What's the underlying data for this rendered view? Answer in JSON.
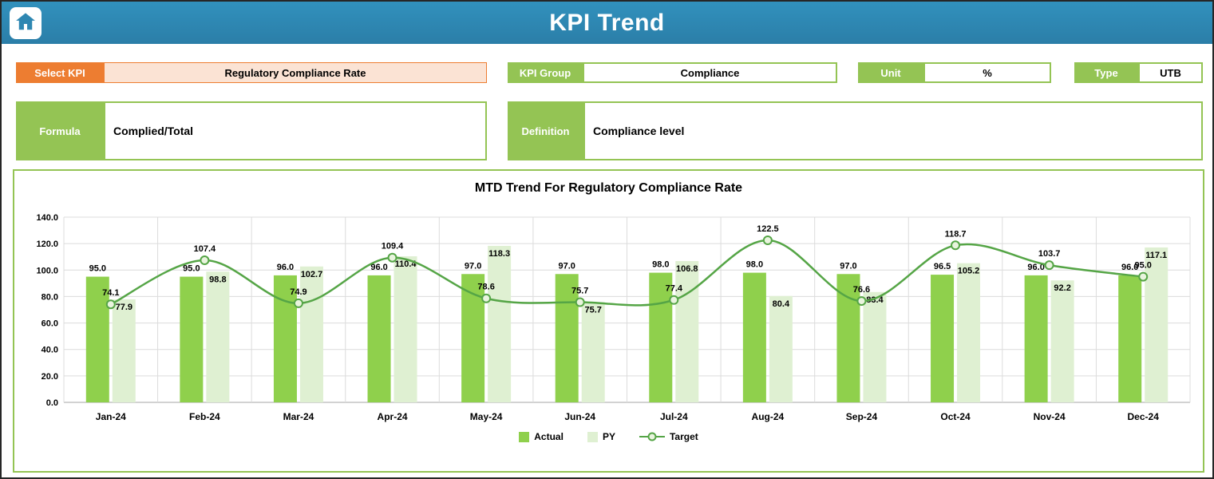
{
  "header": {
    "title": "KPI Trend"
  },
  "icons": {
    "home": "home-icon"
  },
  "filters": {
    "select_kpi": {
      "label": "Select KPI",
      "value": "Regulatory Compliance Rate"
    },
    "kpi_group": {
      "label": "KPI Group",
      "value": "Compliance"
    },
    "unit": {
      "label": "Unit",
      "value": "%"
    },
    "type": {
      "label": "Type",
      "value": "UTB"
    },
    "formula": {
      "label": "Formula",
      "value": "Complied/Total"
    },
    "definition": {
      "label": "Definition",
      "value": "Compliance level"
    }
  },
  "colors": {
    "header_bg": "#2E87B2",
    "accent_orange": "#ED7D31",
    "accent_orange_fill": "#FBE3D4",
    "accent_green": "#94C454",
    "bar_actual": "#8FD04C",
    "bar_py": "#DFF0D2",
    "line_target": "#55A546",
    "marker_fill": "#E9F4DE",
    "gridline": "#DCDCDC"
  },
  "chart_data": {
    "type": "combo-bar-line",
    "title": "MTD Trend For Regulatory Compliance Rate",
    "categories": [
      "Jan-24",
      "Feb-24",
      "Mar-24",
      "Apr-24",
      "May-24",
      "Jun-24",
      "Jul-24",
      "Aug-24",
      "Sep-24",
      "Oct-24",
      "Nov-24",
      "Dec-24"
    ],
    "series": [
      {
        "name": "Actual",
        "type": "bar",
        "values": [
          95.0,
          95.0,
          96.0,
          96.0,
          97.0,
          97.0,
          98.0,
          98.0,
          97.0,
          96.5,
          96.0,
          96.0
        ]
      },
      {
        "name": "PY",
        "type": "bar",
        "values": [
          77.9,
          98.8,
          102.7,
          110.4,
          118.3,
          75.7,
          106.8,
          80.4,
          83.4,
          105.2,
          92.2,
          117.1
        ]
      },
      {
        "name": "Target",
        "type": "line",
        "values": [
          74.1,
          107.4,
          74.9,
          109.4,
          78.6,
          75.7,
          77.4,
          122.5,
          76.6,
          118.7,
          103.7,
          95.0
        ]
      }
    ],
    "ylim": [
      0,
      140
    ],
    "ytick_step": 20,
    "grid": true,
    "legend_position": "bottom"
  }
}
